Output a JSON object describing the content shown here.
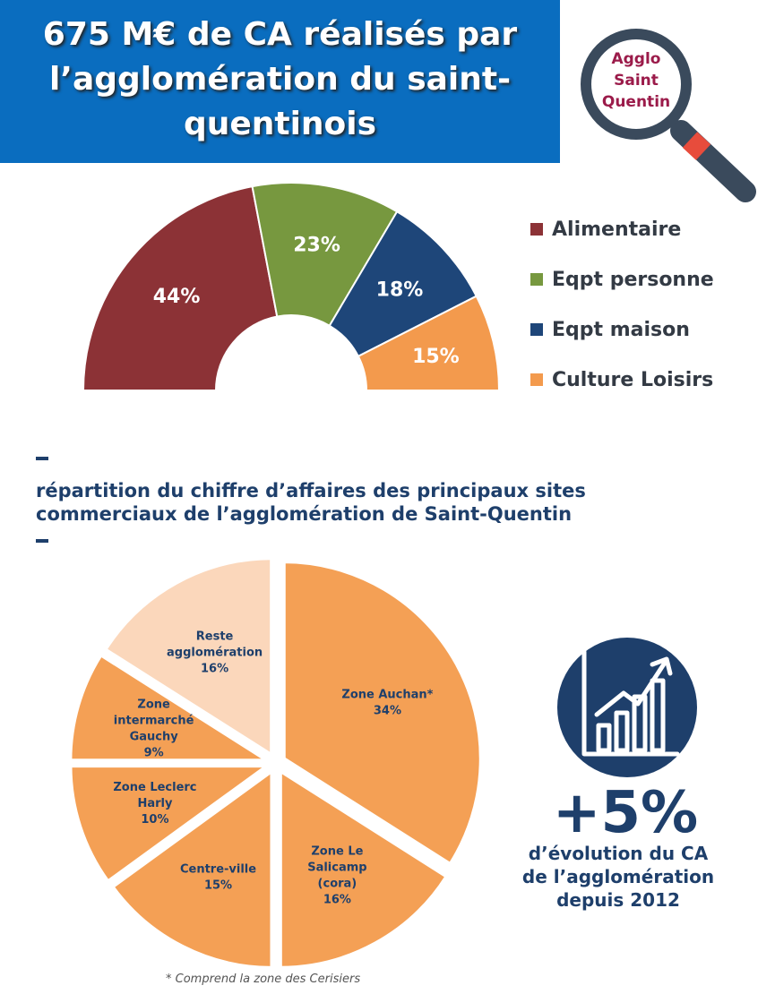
{
  "header": {
    "title_lines": [
      "675 M€ de CA réalisés par",
      "l’agglomération du saint-",
      "quentinois"
    ]
  },
  "logo": {
    "text_lines": [
      "Agglo",
      "Saint",
      "Quentin"
    ],
    "icon": "magnifying-glass-icon"
  },
  "chart_data": [
    {
      "type": "pie",
      "variant": "half-donut",
      "categories": [
        "Alimentaire",
        "Eqpt personne",
        "Eqpt maison",
        "Culture Loisirs"
      ],
      "values": [
        44,
        23,
        18,
        15
      ],
      "value_labels": [
        "44%",
        "23%",
        "18%",
        "15%"
      ],
      "colors": [
        "#8c3236",
        "#77983f",
        "#1e4679",
        "#f39a4d"
      ],
      "legend_position": "right"
    },
    {
      "type": "pie",
      "variant": "exploded",
      "title_lines": [
        "répartition du chiffre d’affaires des principaux sites",
        "commerciaux de l’agglomération de Saint-Quentin"
      ],
      "slices": [
        {
          "label_lines": [
            "Zone Auchan*",
            "34%"
          ],
          "value": 34,
          "color": "#f4a055"
        },
        {
          "label_lines": [
            "Zone Le",
            "Salicamp",
            "(cora)",
            "16%"
          ],
          "value": 16,
          "color": "#f4a055"
        },
        {
          "label_lines": [
            "Centre-ville",
            "15%"
          ],
          "value": 15,
          "color": "#f4a055"
        },
        {
          "label_lines": [
            "Zone Leclerc",
            "Harly",
            "10%"
          ],
          "value": 10,
          "color": "#f4a055"
        },
        {
          "label_lines": [
            "Zone",
            "intermarché",
            "Gauchy",
            "9%"
          ],
          "value": 9,
          "color": "#f4a055"
        },
        {
          "label_lines": [
            "Reste",
            "agglomération",
            "16%"
          ],
          "value": 16,
          "color": "#fbd7bb"
        }
      ],
      "footnote": "* Comprend la zone des Cerisiers"
    }
  ],
  "kpi": {
    "icon": "rising-bar-chart-icon",
    "value": "+5%",
    "caption_lines": [
      "d’évolution du CA",
      "de l’agglomération",
      "depuis 2012"
    ]
  },
  "colors": {
    "title_bg": "#0a6dbf",
    "navy": "#1e3f6b",
    "logo_text": "#9b1b4a"
  }
}
